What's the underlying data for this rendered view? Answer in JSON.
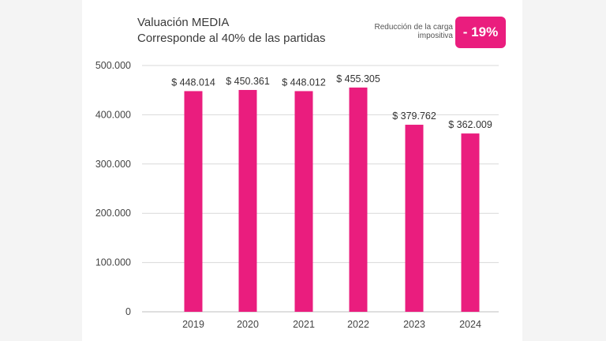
{
  "header": {
    "title_line1": "Valuación MEDIA",
    "title_line2": "Corresponde al 40% de las partidas"
  },
  "reduction": {
    "label": "Reducción de la carga impositiva",
    "value": "- 19%"
  },
  "colors": {
    "bar": "#ea1d7e",
    "badge": "#ea1d7e",
    "grid": "#d9d9d9",
    "axis": "#bfbfbf"
  },
  "chart_data": {
    "type": "bar",
    "title": "Valuación MEDIA",
    "subtitle": "Corresponde al 40% de las partidas",
    "xlabel": "",
    "ylabel": "",
    "categories": [
      "2019",
      "2020",
      "2021",
      "2022",
      "2023",
      "2024"
    ],
    "values": [
      448014,
      450361,
      448012,
      455305,
      379762,
      362009
    ],
    "data_labels": [
      "$ 448.014",
      "$ 450.361",
      "$ 448.012",
      "$ 455.305",
      "$ 379.762",
      "$ 362.009"
    ],
    "ylim": [
      0,
      500000
    ],
    "yticks": [
      0,
      100000,
      200000,
      300000,
      400000,
      500000
    ],
    "ytick_labels": [
      "0",
      "100.000",
      "200.000",
      "300.000",
      "400.000",
      "500.000"
    ],
    "grid": true,
    "legend": "none"
  }
}
